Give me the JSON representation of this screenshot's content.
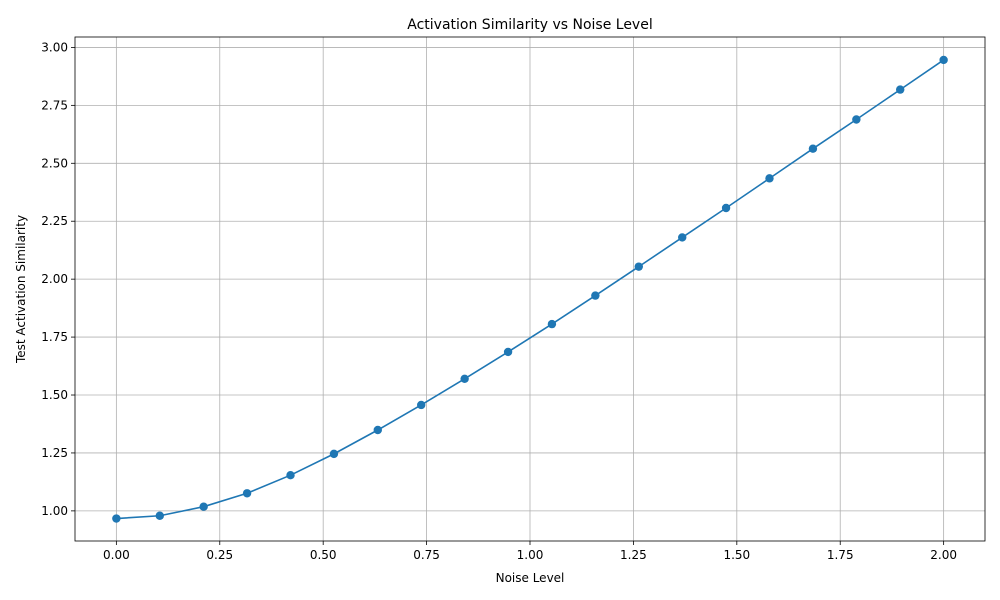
{
  "chart_data": {
    "type": "line",
    "title": "Activation Similarity vs Noise Level",
    "xlabel": "Noise Level",
    "ylabel": "Test Activation Similarity",
    "xlim": [
      -0.1,
      2.1
    ],
    "ylim": [
      0.87,
      3.045
    ],
    "x_ticks": [
      0.0,
      0.25,
      0.5,
      0.75,
      1.0,
      1.25,
      1.5,
      1.75,
      2.0
    ],
    "x_tick_labels": [
      "0.00",
      "0.25",
      "0.50",
      "0.75",
      "1.00",
      "1.25",
      "1.50",
      "1.75",
      "2.00"
    ],
    "y_ticks": [
      1.0,
      1.25,
      1.5,
      1.75,
      2.0,
      2.25,
      2.5,
      2.75,
      3.0
    ],
    "y_tick_labels": [
      "1.00",
      "1.25",
      "1.50",
      "1.75",
      "2.00",
      "2.25",
      "2.50",
      "2.75",
      "3.00"
    ],
    "grid": true,
    "color": "#1f77b4",
    "marker": "circle",
    "x": [
      0.0,
      0.105,
      0.211,
      0.316,
      0.421,
      0.526,
      0.632,
      0.737,
      0.842,
      0.947,
      1.053,
      1.158,
      1.263,
      1.368,
      1.474,
      1.579,
      1.684,
      1.789,
      1.895,
      2.0
    ],
    "y": [
      0.967,
      0.979,
      1.018,
      1.076,
      1.154,
      1.246,
      1.349,
      1.457,
      1.57,
      1.686,
      1.806,
      1.929,
      2.054,
      2.18,
      2.307,
      2.435,
      2.563,
      2.689,
      2.818,
      2.946
    ]
  }
}
